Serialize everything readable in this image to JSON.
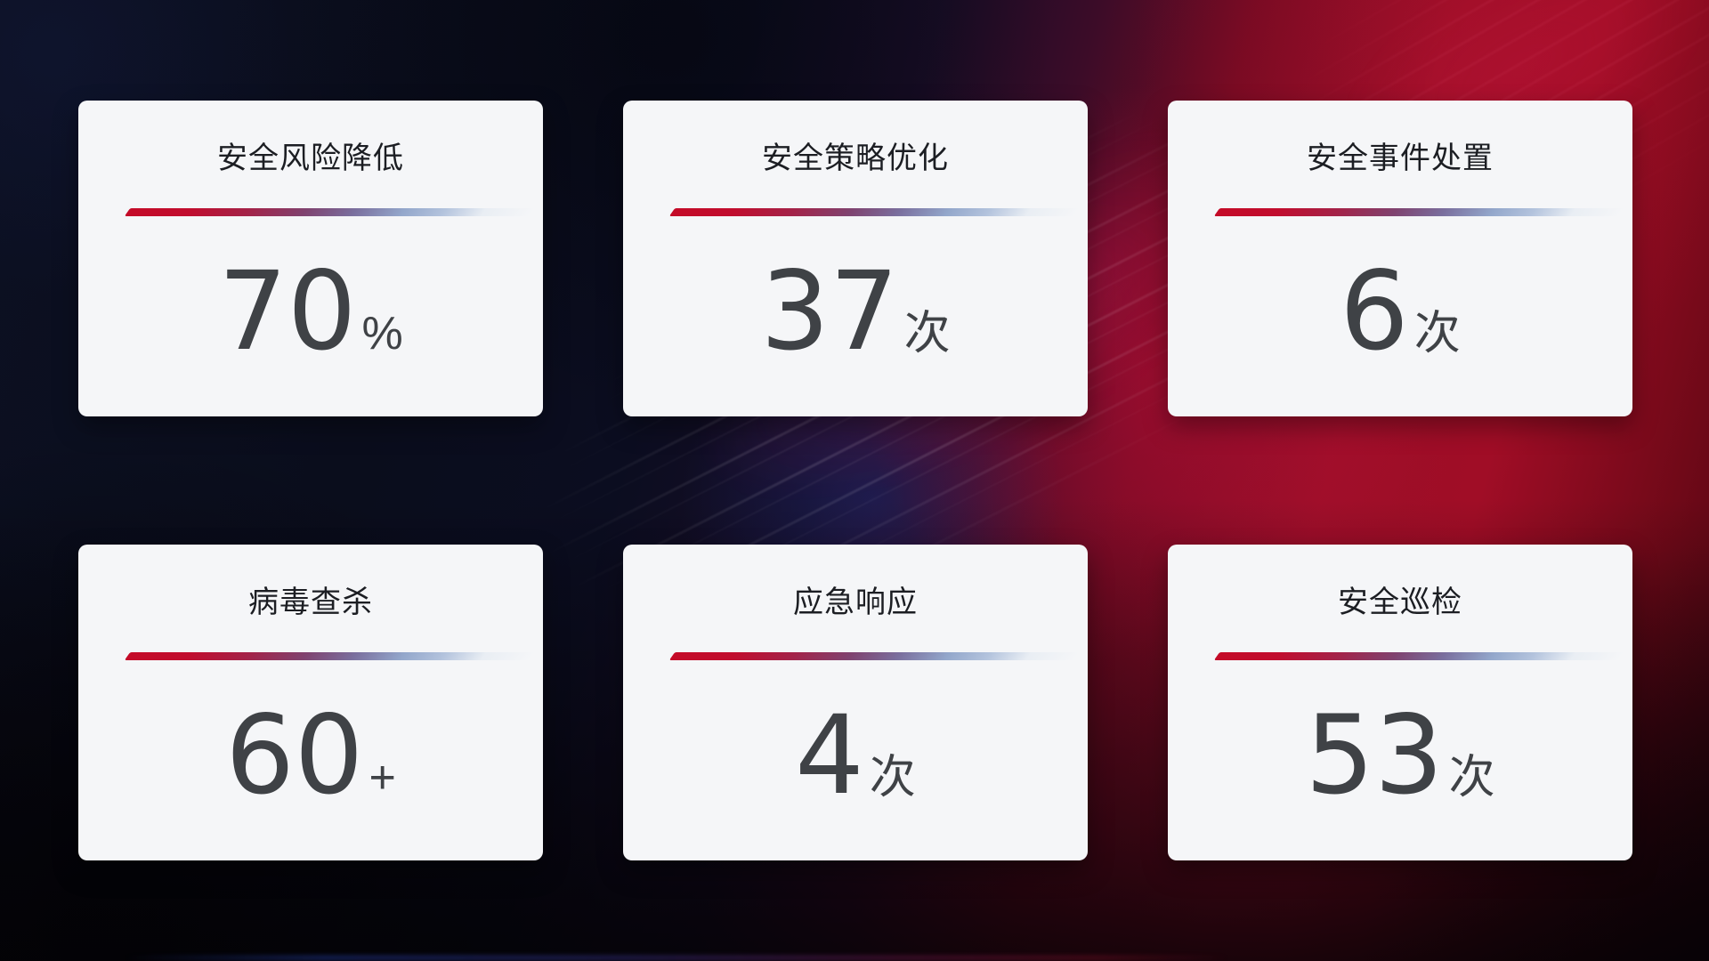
{
  "cards": [
    {
      "title": "安全风险降低",
      "value": "70",
      "unit": "%"
    },
    {
      "title": "安全策略优化",
      "value": "37",
      "unit": "次"
    },
    {
      "title": "安全事件处置",
      "value": "6",
      "unit": "次"
    },
    {
      "title": "病毒查杀",
      "value": "60",
      "unit": "+"
    },
    {
      "title": "应急响应",
      "value": "4",
      "unit": "次"
    },
    {
      "title": "安全巡检",
      "value": "53",
      "unit": "次"
    }
  ],
  "colors": {
    "card_background": "#f5f6f8",
    "title_text": "#1c1e23",
    "value_text": "#3f4246",
    "divider_gradient_start": "#c40b28",
    "divider_gradient_mid": "#7f4370",
    "divider_gradient_end": "#b3c3dd",
    "background_navy": "#0a0d1c",
    "background_red": "#a00d26"
  }
}
